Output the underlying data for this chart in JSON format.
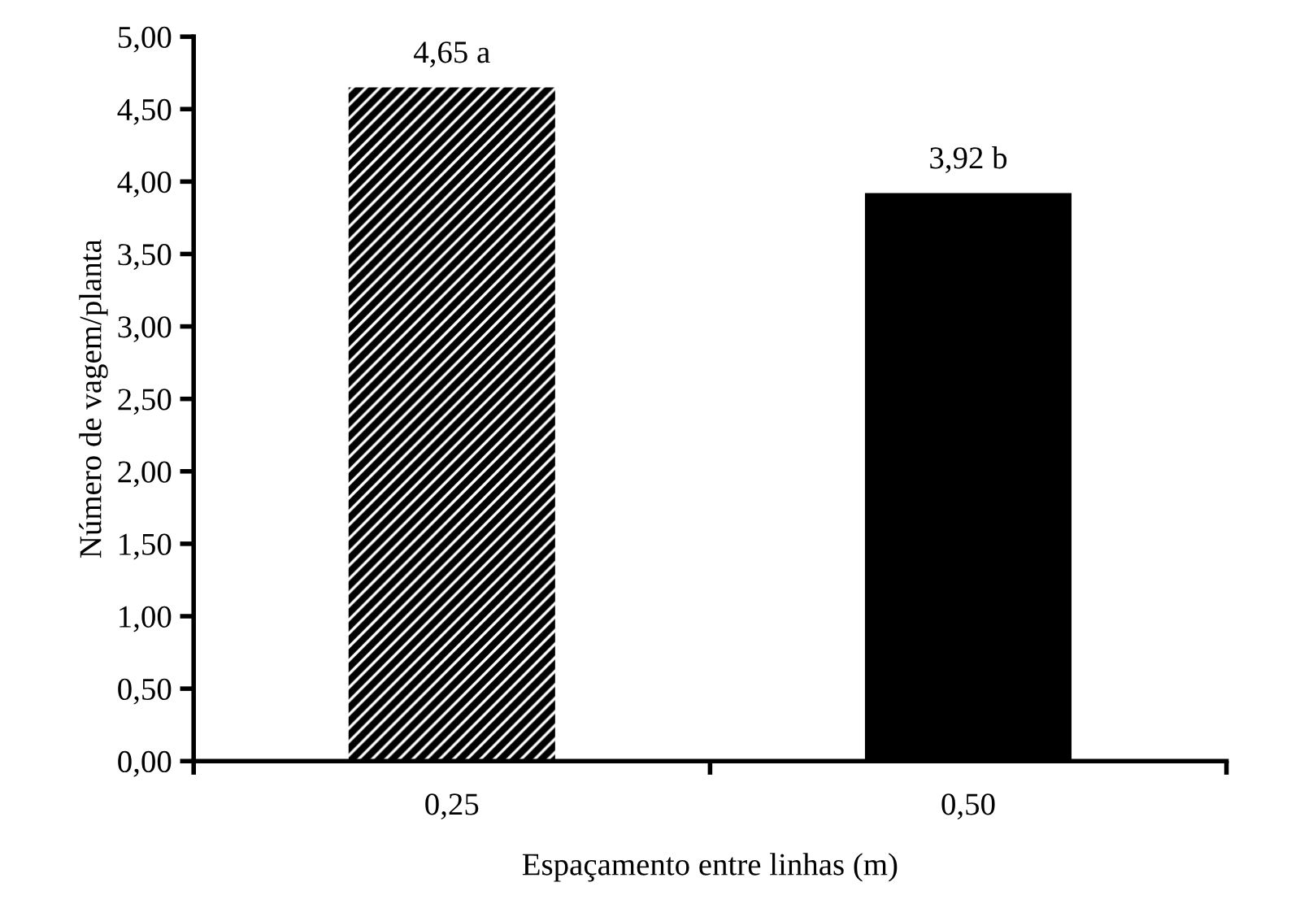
{
  "chart_data": {
    "type": "bar",
    "xlabel": "Espaçamento entre linhas (m)",
    "ylabel": "Número de vagem/planta",
    "categories": [
      "0,25",
      "0,50"
    ],
    "values": [
      4.65,
      3.92
    ],
    "colors": [
      "#ffffff",
      "#000000"
    ],
    "value_labels": [
      "4,65 a",
      "3,92 b"
    ],
    "ylim": [
      0,
      5
    ],
    "yticks": [
      {
        "value": 0,
        "label": "0,00"
      },
      {
        "value": 0.5,
        "label": "0,50"
      },
      {
        "value": 1,
        "label": "1,00"
      },
      {
        "value": 1.5,
        "label": "1,50"
      },
      {
        "value": 2,
        "label": "2,00"
      },
      {
        "value": 2.5,
        "label": "2,50"
      },
      {
        "value": 3,
        "label": "3,00"
      },
      {
        "value": 3.5,
        "label": "3,50"
      },
      {
        "value": 4,
        "label": "4,00"
      },
      {
        "value": 4.5,
        "label": "4,50"
      },
      {
        "value": 5,
        "label": "5,00"
      }
    ],
    "grid": false,
    "legend": false
  }
}
